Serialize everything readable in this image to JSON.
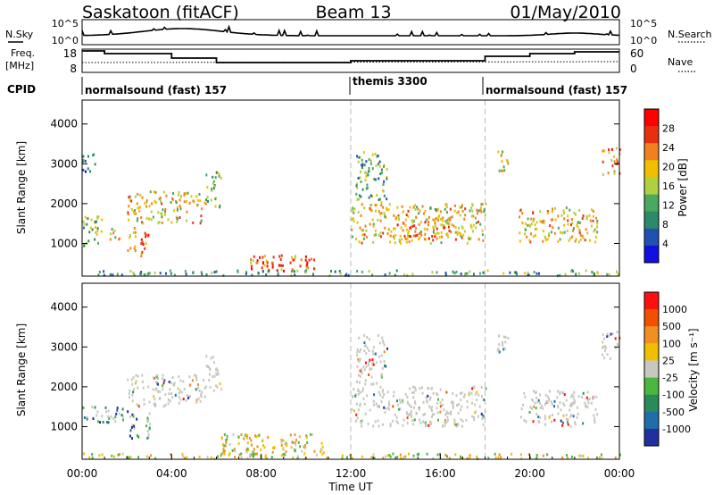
{
  "header": {
    "station": "Saskatoon (fitACF)",
    "beam": "Beam 13",
    "date": "01/May/2010"
  },
  "nsky_panel": {
    "left_label": "N.Sky",
    "right_label": "N.Search",
    "left_ticks": [
      "10^5",
      "10^0"
    ],
    "right_ticks": [
      "10^5",
      "10^0"
    ]
  },
  "freq_panel": {
    "left_label_1": "Freq.",
    "left_label_2": "[MHz]",
    "left_ticks": [
      "18",
      "8"
    ],
    "right_label": "Nave",
    "right_ticks": [
      "60",
      "0"
    ]
  },
  "cpid": {
    "label": "CPID",
    "segments": [
      {
        "name": "normalsound (fast) 157",
        "start_hour": 0
      },
      {
        "name": "themis 3300",
        "start_hour": 12
      },
      {
        "name": "normalsound (fast) 157",
        "start_hour": 18
      }
    ]
  },
  "time_axis": {
    "label": "Time UT",
    "ticks": [
      "00:00",
      "04:00",
      "08:00",
      "12:00",
      "16:00",
      "20:00",
      "00:00"
    ]
  },
  "colors": {
    "power": [
      "#1010e0",
      "#2050b0",
      "#2a8a6a",
      "#4aa860",
      "#b0d040",
      "#f0c000",
      "#f08020",
      "#e83010",
      "#ff0000"
    ],
    "velocity_pos": [
      "#2030a0",
      "#1e6fa8",
      "#2a8a5a",
      "#4ab840"
    ],
    "velocity_gray": "#c8c8c0",
    "velocity_neg": [
      "#f0c000",
      "#f09020",
      "#f05000",
      "#ff1010"
    ]
  },
  "chart_data": [
    {
      "type": "heatmap",
      "title": "Power",
      "ylabel": "Slant Range [km]",
      "xlabel": "Time UT",
      "xlim_hours": [
        0,
        24
      ],
      "ylim": [
        180,
        4600
      ],
      "yticks": [
        "1000",
        "2000",
        "3000",
        "4000"
      ],
      "colorbar_label": "Power [dB]",
      "colorbar_ticks": [
        "4",
        "8",
        "12",
        "16",
        "20",
        "24",
        "28"
      ],
      "colorbar_range": [
        0,
        30
      ],
      "scatter_regions": [
        {
          "t0": 0.0,
          "t1": 0.9,
          "r0": 900,
          "r1": 1700,
          "level": 0.45
        },
        {
          "t0": 1.2,
          "t1": 1.7,
          "r0": 1100,
          "r1": 1500,
          "level": 0.55
        },
        {
          "t0": 2.0,
          "t1": 2.4,
          "r0": 700,
          "r1": 1400,
          "level": 0.6
        },
        {
          "t0": 2.5,
          "t1": 3.0,
          "r0": 600,
          "r1": 1300,
          "level": 0.8
        },
        {
          "t0": 2.0,
          "t1": 5.5,
          "r0": 1500,
          "r1": 2300,
          "level": 0.6
        },
        {
          "t0": 0.0,
          "t1": 0.6,
          "r0": 2800,
          "r1": 3300,
          "level": 0.3
        },
        {
          "t0": 5.5,
          "t1": 6.2,
          "r0": 1900,
          "r1": 2800,
          "level": 0.45
        },
        {
          "t0": 7.5,
          "t1": 10.5,
          "r0": 300,
          "r1": 700,
          "level": 0.75
        },
        {
          "t0": 7.5,
          "t1": 8.5,
          "r0": 300,
          "r1": 550,
          "level": 0.9
        },
        {
          "t0": 12.0,
          "t1": 18.0,
          "r0": 1000,
          "r1": 2000,
          "level": 0.6
        },
        {
          "t0": 12.2,
          "t1": 13.6,
          "r0": 2000,
          "r1": 3300,
          "level": 0.4
        },
        {
          "t0": 14.0,
          "t1": 16.5,
          "r0": 1100,
          "r1": 1600,
          "level": 0.75
        },
        {
          "t0": 18.5,
          "t1": 19.2,
          "r0": 2800,
          "r1": 3300,
          "level": 0.55
        },
        {
          "t0": 19.5,
          "t1": 23.0,
          "r0": 1000,
          "r1": 1900,
          "level": 0.6
        },
        {
          "t0": 23.2,
          "t1": 24.0,
          "r0": 2700,
          "r1": 3400,
          "level": 0.7
        },
        {
          "t0": 0.0,
          "t1": 24.0,
          "r0": 190,
          "r1": 320,
          "level": 0.35
        }
      ]
    },
    {
      "type": "heatmap",
      "title": "Velocity",
      "ylabel": "Slant Range [km]",
      "xlabel": "Time UT",
      "xlim_hours": [
        0,
        24
      ],
      "ylim": [
        180,
        4600
      ],
      "yticks": [
        "1000",
        "2000",
        "3000",
        "4000"
      ],
      "colorbar_label": "Velocity [m s⁻¹]",
      "colorbar_ticks": [
        "1000",
        "500",
        "100",
        "25",
        "-25",
        "-100",
        "-500",
        "-1000"
      ],
      "scatter_regions": [
        {
          "t0": 0.0,
          "t1": 2.0,
          "r0": 1100,
          "r1": 1500,
          "kind": "pos"
        },
        {
          "t0": 2.0,
          "t1": 3.0,
          "r0": 700,
          "r1": 1400,
          "kind": "pos"
        },
        {
          "t0": 2.0,
          "t1": 5.5,
          "r0": 1500,
          "r1": 2300,
          "kind": "gray"
        },
        {
          "t0": 5.5,
          "t1": 6.2,
          "r0": 1900,
          "r1": 2800,
          "kind": "gray"
        },
        {
          "t0": 6.2,
          "t1": 11.0,
          "r0": 250,
          "r1": 800,
          "kind": "neg"
        },
        {
          "t0": 12.0,
          "t1": 18.0,
          "r0": 1000,
          "r1": 2000,
          "kind": "gray"
        },
        {
          "t0": 12.2,
          "t1": 13.6,
          "r0": 2000,
          "r1": 3300,
          "kind": "gray"
        },
        {
          "t0": 18.5,
          "t1": 19.2,
          "r0": 2800,
          "r1": 3300,
          "kind": "gray"
        },
        {
          "t0": 19.5,
          "t1": 23.0,
          "r0": 1000,
          "r1": 1900,
          "kind": "gray"
        },
        {
          "t0": 23.2,
          "t1": 24.0,
          "r0": 2700,
          "r1": 3400,
          "kind": "gray"
        },
        {
          "t0": 0.0,
          "t1": 24.0,
          "r0": 190,
          "r1": 320,
          "kind": "neg"
        }
      ]
    }
  ]
}
